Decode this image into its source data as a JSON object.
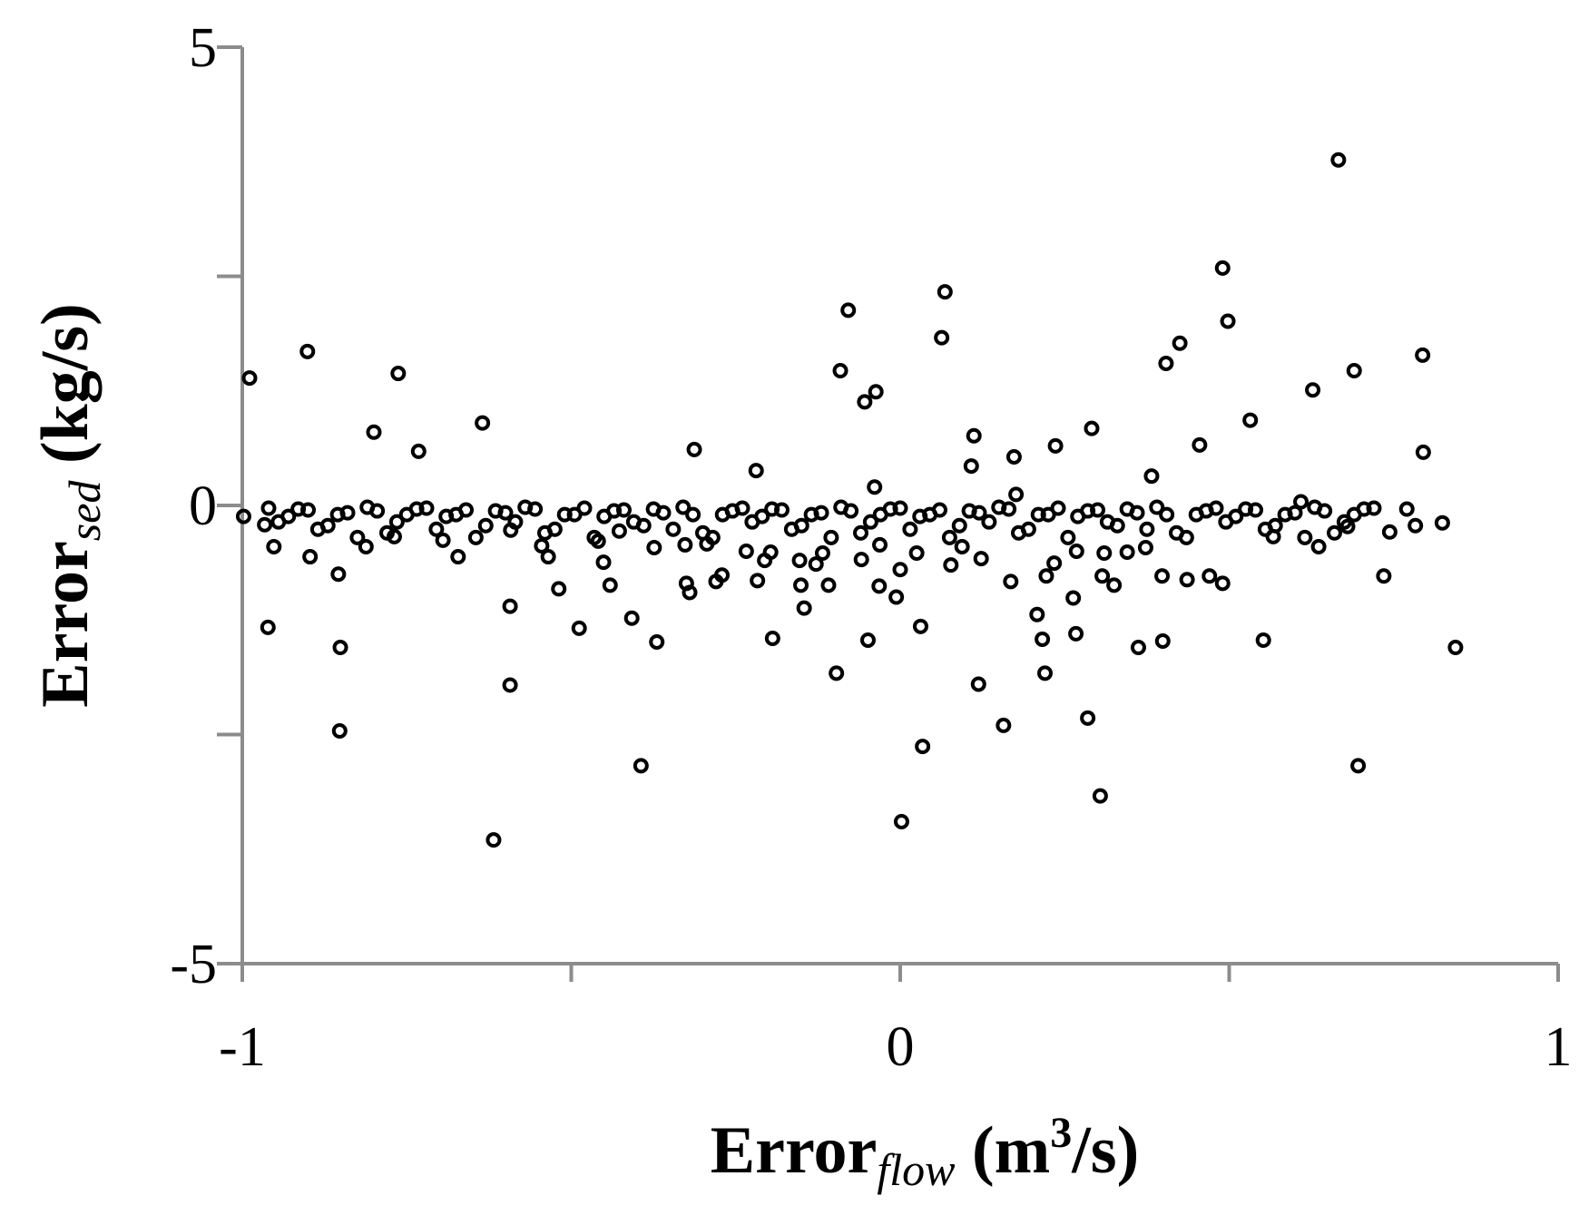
{
  "chart_data": {
    "type": "scatter",
    "xlabel": [
      "Error",
      "flow",
      " (m",
      "3",
      "/s)"
    ],
    "ylabel": [
      "Error",
      "sed",
      " (kg/s)"
    ],
    "xlim": [
      -1,
      1
    ],
    "ylim": [
      -5,
      5
    ],
    "xticks": [
      -1,
      0,
      1
    ],
    "yticks": [
      -5,
      0,
      5
    ],
    "xminorticks": [
      -0.5,
      0.5
    ],
    "yminorticks": [
      -2.5,
      2.5
    ],
    "grid": false,
    "marker_color": "#000000",
    "axis_color": "#8c8c8c",
    "x": [
      -0.989,
      -0.901,
      -0.763,
      -0.8,
      -0.732,
      -0.635,
      -0.313,
      -0.219,
      -0.079,
      -0.091,
      -0.037,
      -0.054,
      0.068,
      0.063,
      0.112,
      0.108,
      0.173,
      0.236,
      0.291,
      0.382,
      0.404,
      0.425,
      0.455,
      0.49,
      0.498,
      0.532,
      0.627,
      0.666,
      0.69,
      0.794,
      0.795,
      -0.039,
      0.176,
      0.609,
      -0.998,
      -0.966,
      -0.952,
      -0.961,
      -0.897,
      -0.854,
      -0.851,
      -0.852,
      -0.812,
      -0.769,
      -0.695,
      -0.672,
      -0.593,
      -0.593,
      -0.618,
      -0.592,
      -0.545,
      -0.535,
      -0.519,
      -0.488,
      -0.459,
      -0.451,
      -0.441,
      -0.427,
      -0.408,
      -0.394,
      -0.374,
      -0.37,
      -0.327,
      -0.325,
      -0.32,
      -0.294,
      -0.28,
      -0.271,
      -0.234,
      -0.217,
      -0.206,
      -0.197,
      -0.194,
      -0.153,
      -0.151,
      -0.146,
      -0.128,
      -0.118,
      -0.109,
      -0.097,
      -0.059,
      -0.049,
      -0.031,
      -0.032,
      -0.006,
      0.0,
      0.002,
      0.025,
      0.031,
      0.034,
      0.077,
      0.094,
      0.123,
      0.119,
      0.157,
      0.168,
      0.208,
      0.216,
      0.22,
      0.222,
      0.234,
      0.263,
      0.267,
      0.268,
      0.285,
      0.304,
      0.307,
      0.31,
      0.325,
      0.345,
      0.362,
      0.373,
      0.398,
      0.399,
      0.436,
      0.47,
      0.49,
      0.552,
      0.567,
      0.636,
      0.68,
      0.696,
      0.735,
      0.744,
      0.77,
      0.783,
      0.824,
      0.844,
      -0.96,
      -0.93,
      -0.9,
      -0.87,
      -0.84,
      -0.81,
      -0.78,
      -0.75,
      -0.72,
      -0.69,
      -0.66,
      -0.63,
      -0.6,
      -0.57,
      -0.54,
      -0.51,
      -0.48,
      -0.45,
      -0.42,
      -0.39,
      -0.36,
      -0.33,
      -0.3,
      -0.27,
      -0.24,
      -0.21,
      -0.18,
      -0.15,
      -0.12,
      -0.09,
      -0.06,
      -0.03,
      0.0,
      0.03,
      0.06,
      0.09,
      0.12,
      0.15,
      0.18,
      0.21,
      0.24,
      0.27,
      0.3,
      0.33,
      0.36,
      0.39,
      0.42,
      0.45,
      0.48,
      0.51,
      0.54,
      0.57,
      0.6,
      0.63,
      0.66,
      0.69,
      0.72,
      -0.945,
      -0.915,
      -0.885,
      -0.855,
      -0.825,
      -0.795,
      -0.765,
      -0.735,
      -0.705,
      -0.675,
      -0.645,
      -0.615,
      -0.585,
      -0.555,
      -0.525,
      -0.495,
      -0.465,
      -0.435,
      -0.405,
      -0.375,
      -0.345,
      -0.315,
      -0.285,
      -0.255,
      -0.225,
      -0.195,
      -0.165,
      -0.135,
      -0.105,
      -0.075,
      -0.045,
      -0.015,
      0.015,
      0.045,
      0.075,
      0.105,
      0.135,
      0.165,
      0.195,
      0.225,
      0.255,
      0.285,
      0.315,
      0.345,
      0.375,
      0.405,
      0.435,
      0.465,
      0.495,
      0.525,
      0.555,
      0.585,
      0.615,
      0.645,
      0.675,
      0.705
    ],
    "values": [
      1.39,
      1.68,
      1.44,
      0.8,
      0.59,
      0.9,
      0.61,
      0.38,
      2.13,
      1.47,
      1.24,
      1.13,
      2.33,
      1.83,
      0.76,
      0.43,
      0.53,
      0.65,
      0.84,
      0.32,
      1.55,
      1.77,
      0.66,
      2.59,
      2.01,
      0.93,
      1.26,
      3.77,
      1.47,
      1.64,
      0.58,
      0.2,
      0.12,
      0.04,
      -0.12,
      -0.21,
      -0.45,
      -1.33,
      -0.56,
      -0.75,
      -1.55,
      -2.46,
      -0.45,
      -0.34,
      -0.38,
      -0.56,
      -1.1,
      -1.96,
      -3.65,
      -0.27,
      -0.44,
      -0.56,
      -0.91,
      -1.34,
      -0.39,
      -0.62,
      -0.87,
      -0.28,
      -1.23,
      -2.84,
      -0.46,
      -1.49,
      -0.43,
      -0.85,
      -0.95,
      -0.42,
      -0.83,
      -0.76,
      -0.5,
      -0.82,
      -0.6,
      -0.51,
      -1.45,
      -0.6,
      -0.87,
      -1.12,
      -0.64,
      -0.52,
      -0.87,
      -1.83,
      -0.59,
      -1.47,
      -0.43,
      -0.88,
      -1.0,
      -0.7,
      -3.45,
      -0.52,
      -1.32,
      -2.63,
      -0.65,
      -0.45,
      -0.58,
      -1.95,
      -2.4,
      -0.83,
      -1.19,
      -1.46,
      -1.83,
      -0.77,
      -0.63,
      -1.01,
      -1.4,
      -0.5,
      -2.32,
      -3.17,
      -0.77,
      -0.52,
      -0.87,
      -0.51,
      -1.55,
      -0.46,
      -0.77,
      -1.48,
      -0.81,
      -0.77,
      -0.85,
      -1.47,
      -0.34,
      -0.45,
      -0.23,
      -2.84,
      -0.77,
      -0.29,
      -0.04,
      -0.22,
      -0.19,
      -1.55,
      -0.03,
      -0.12,
      -0.05,
      -0.22,
      -0.08,
      -0.02,
      -0.3,
      -0.1,
      -0.03,
      -0.12,
      -0.05,
      -0.22,
      -0.08,
      -0.02,
      -0.3,
      -0.1,
      -0.03,
      -0.12,
      -0.05,
      -0.22,
      -0.08,
      -0.02,
      -0.3,
      -0.1,
      -0.03,
      -0.12,
      -0.05,
      -0.22,
      -0.08,
      -0.02,
      -0.3,
      -0.1,
      -0.03,
      -0.12,
      -0.05,
      -0.22,
      -0.08,
      -0.02,
      -0.3,
      -0.1,
      -0.03,
      -0.12,
      -0.05,
      -0.22,
      -0.08,
      -0.02,
      -0.3,
      -0.1,
      -0.03,
      -0.12,
      -0.05,
      -0.22,
      -0.08,
      -0.02,
      -0.3,
      -0.1,
      -0.03,
      -0.18,
      -0.04,
      -0.26,
      -0.1,
      -0.35,
      -0.06,
      -0.18,
      -0.04,
      -0.26,
      -0.1,
      -0.35,
      -0.06,
      -0.18,
      -0.04,
      -0.26,
      -0.1,
      -0.35,
      -0.06,
      -0.18,
      -0.04,
      -0.26,
      -0.1,
      -0.35,
      -0.06,
      -0.18,
      -0.04,
      -0.26,
      -0.1,
      -0.35,
      -0.06,
      -0.18,
      -0.04,
      -0.26,
      -0.1,
      -0.35,
      -0.06,
      -0.18,
      -0.04,
      -0.26,
      -0.1,
      -0.35,
      -0.06,
      -0.18,
      -0.04,
      -0.26,
      -0.1,
      -0.35,
      -0.06,
      -0.18,
      -0.04,
      -0.26,
      -0.1,
      -0.35,
      -0.06,
      -0.18,
      -0.04
    ]
  }
}
